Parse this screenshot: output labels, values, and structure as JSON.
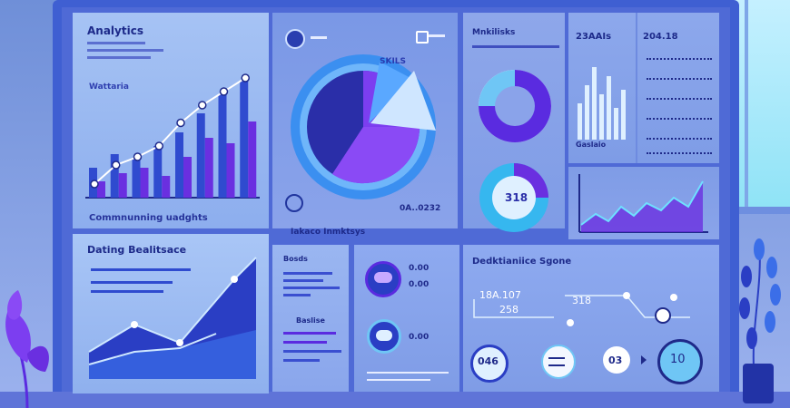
{
  "panels": {
    "analytics": {
      "title": "Analytics",
      "subtitle": "Wattaria",
      "footer": "Commnunning uadghts"
    },
    "pie": {
      "badge_top": "SKILS",
      "caption": "Iakaco Inmktsys",
      "value_label": "0A..0232"
    },
    "donuts": {
      "heading": "Mnkilisks",
      "center_value": "318"
    },
    "stats": {
      "value_a": "23AAIs",
      "value_b": "204.18",
      "bar_label": "Gaslaio"
    },
    "dating": {
      "title": "Dating Bealitsace"
    },
    "bars": {
      "label_top": "Bosds",
      "label_mid": "Baslise"
    },
    "rings": {
      "value_a": "0.00",
      "value_b": "0.00",
      "value_c": "0.00"
    },
    "decision": {
      "title": "Dedktianiice Sgone",
      "value_a": "18A.107",
      "value_b": "258",
      "value_c": "318"
    },
    "bottom_circles": [
      "046",
      "",
      "03",
      "10"
    ]
  },
  "chart_data": {
    "type": "bar",
    "categories": [
      "",
      "",
      "",
      "",
      "",
      "",
      "",
      ""
    ],
    "series": [
      {
        "name": "",
        "values": [
          22,
          32,
          28,
          38,
          48,
          62,
          76,
          86
        ]
      },
      {
        "name": "",
        "values": [
          12,
          18,
          22,
          16,
          30,
          44,
          40,
          56
        ]
      }
    ],
    "line": [
      10,
      24,
      30,
      38,
      55,
      68,
      78,
      88
    ]
  },
  "colors": {
    "accent": "#6d2fe0",
    "dark": "#1d2e9b",
    "light": "#6fc6f5",
    "bg": "#8aa6e4"
  }
}
